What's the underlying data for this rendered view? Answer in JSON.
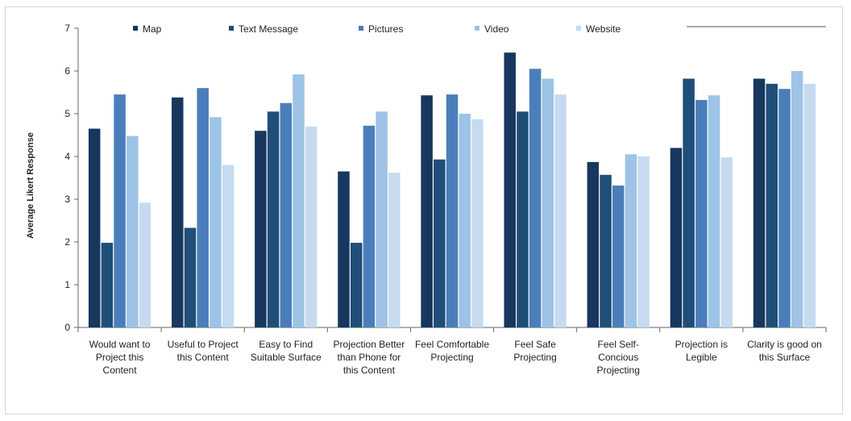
{
  "chart_data": {
    "type": "bar",
    "ylabel": "Average Likert Response",
    "ylim": [
      0,
      7
    ],
    "yticks": [
      "0",
      "1",
      "2",
      "3",
      "4",
      "5",
      "6",
      "7"
    ],
    "legend_position": "top",
    "grid": false,
    "categories": [
      [
        "Would want to",
        "Project this",
        "Content"
      ],
      [
        "Useful to Project",
        "this Content"
      ],
      [
        "Easy to Find",
        "Suitable Surface"
      ],
      [
        "Projection Better",
        "than Phone for",
        "this Content"
      ],
      [
        "Feel Comfortable",
        "Projecting"
      ],
      [
        "Feel Safe",
        "Projecting"
      ],
      [
        "Feel Self-",
        "Concious",
        "Projecting"
      ],
      [
        "Projection is",
        "Legible"
      ],
      [
        "Clarity is good on",
        "this Surface"
      ]
    ],
    "series": [
      {
        "name": "Map",
        "color": "#17375e",
        "values": [
          4.65,
          5.38,
          4.6,
          3.65,
          5.43,
          6.43,
          3.87,
          4.2,
          5.82
        ]
      },
      {
        "name": "Text Message",
        "color": "#1f4e79",
        "values": [
          1.98,
          2.33,
          5.05,
          1.98,
          3.93,
          5.05,
          3.57,
          5.82,
          5.7
        ]
      },
      {
        "name": "Pictures",
        "color": "#4a7ebb",
        "values": [
          5.45,
          5.6,
          5.25,
          4.72,
          5.45,
          6.05,
          3.32,
          5.32,
          5.58
        ]
      },
      {
        "name": "Video",
        "color": "#9dc3e6",
        "values": [
          4.48,
          4.92,
          5.92,
          5.05,
          5.0,
          5.82,
          4.05,
          5.43,
          6.0
        ]
      },
      {
        "name": "Website",
        "color": "#c6dbef",
        "values": [
          2.92,
          3.8,
          4.7,
          3.62,
          4.87,
          5.45,
          4.0,
          3.98,
          5.7
        ]
      }
    ]
  }
}
